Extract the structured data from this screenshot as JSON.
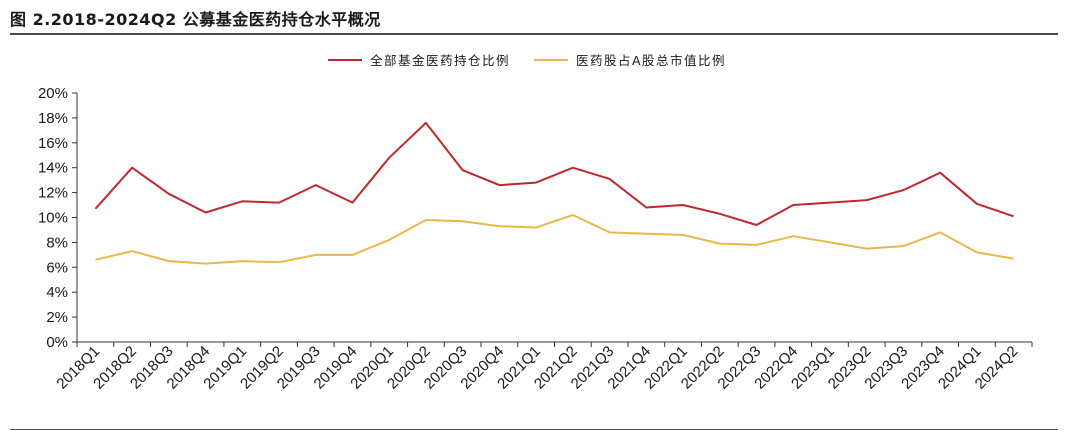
{
  "title": "图 2.2018-2024Q2 公募基金医药持仓水平概况",
  "chart_data": {
    "type": "line",
    "title": "",
    "xlabel": "",
    "ylabel": "",
    "categories": [
      "2018Q1",
      "2018Q2",
      "2018Q3",
      "2018Q4",
      "2019Q1",
      "2019Q2",
      "2019Q3",
      "2019Q4",
      "2020Q1",
      "2020Q2",
      "2020Q3",
      "2020Q4",
      "2021Q1",
      "2021Q2",
      "2021Q3",
      "2021Q4",
      "2022Q1",
      "2022Q2",
      "2022Q3",
      "2022Q4",
      "2023Q1",
      "2023Q2",
      "2023Q3",
      "2023Q4",
      "2024Q1",
      "2024Q2"
    ],
    "ylim": [
      0,
      20
    ],
    "yticks": [
      "0%",
      "2%",
      "4%",
      "6%",
      "8%",
      "10%",
      "12%",
      "14%",
      "16%",
      "18%",
      "20%"
    ],
    "grid": false,
    "legend_position": "top-center",
    "series": [
      {
        "name": "全部基金医药持仓比例",
        "color": "#c0282d",
        "values": [
          10.7,
          14.0,
          11.9,
          10.4,
          11.3,
          11.2,
          12.6,
          11.2,
          14.8,
          17.6,
          13.8,
          12.6,
          12.8,
          14.0,
          13.1,
          10.8,
          11.0,
          10.3,
          9.4,
          11.0,
          11.2,
          11.4,
          12.2,
          13.6,
          11.1,
          10.1
        ]
      },
      {
        "name": "医药股占A股总市值比例",
        "color": "#e8b84a",
        "values": [
          6.6,
          7.3,
          6.5,
          6.3,
          6.5,
          6.4,
          7.0,
          7.0,
          8.2,
          9.8,
          9.7,
          9.3,
          9.2,
          10.2,
          8.8,
          8.7,
          8.6,
          7.9,
          7.8,
          8.5,
          8.0,
          7.5,
          7.7,
          8.8,
          7.2,
          6.7
        ]
      }
    ]
  }
}
